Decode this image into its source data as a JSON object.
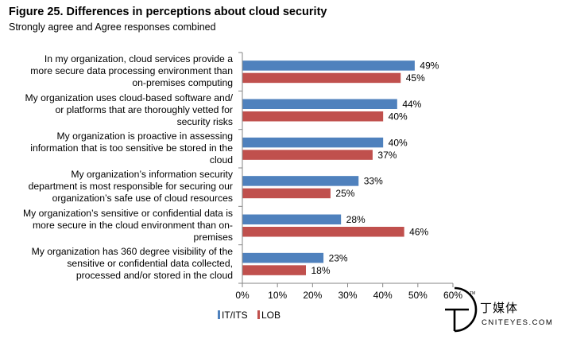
{
  "title": "Figure 25. Differences in perceptions about cloud security",
  "subtitle": "Strongly agree and Agree responses combined",
  "chart_data": {
    "type": "bar",
    "orientation": "horizontal",
    "categories": [
      [
        "In my organization, cloud services provide a",
        "more secure data processing environment than",
        "on-premises computing"
      ],
      [
        "My organization uses cloud-based software and/",
        "or platforms that are thoroughly vetted for",
        "security risks"
      ],
      [
        "My organization is proactive in assessing",
        "information that is too sensitive be stored in the",
        "cloud"
      ],
      [
        "My organization’s information security",
        "department is most responsible for securing our",
        "organization’s safe use of cloud resources"
      ],
      [
        "My organization’s sensitive or confidential data is",
        "more secure in the cloud environment than on-",
        "premises"
      ],
      [
        "My organization has 360 degree visibility of the",
        "sensitive or confidential data collected,",
        "processed and/or stored in the cloud"
      ]
    ],
    "series": [
      {
        "name": "IT/ITS",
        "color": "#4f81bd",
        "values": [
          49,
          44,
          40,
          33,
          28,
          23
        ],
        "labels": [
          "49%",
          "44%",
          "40%",
          "33%",
          "28%",
          "23%"
        ]
      },
      {
        "name": "LOB",
        "color": "#c0504d",
        "values": [
          45,
          40,
          37,
          25,
          46,
          18
        ],
        "labels": [
          "45%",
          "40%",
          "37%",
          "25%",
          "46%",
          "18%"
        ]
      }
    ],
    "xlim": [
      0,
      60
    ],
    "xticks": [
      0,
      10,
      20,
      30,
      40,
      50,
      60
    ],
    "xtick_labels": [
      "0%",
      "10%",
      "20%",
      "30%",
      "40%",
      "50%",
      "60%"
    ],
    "legend": "bottom-left",
    "grid": false
  },
  "watermark": {
    "cn": "丁媒体",
    "en": "CNITEYES.COM",
    "tm": "TM"
  }
}
